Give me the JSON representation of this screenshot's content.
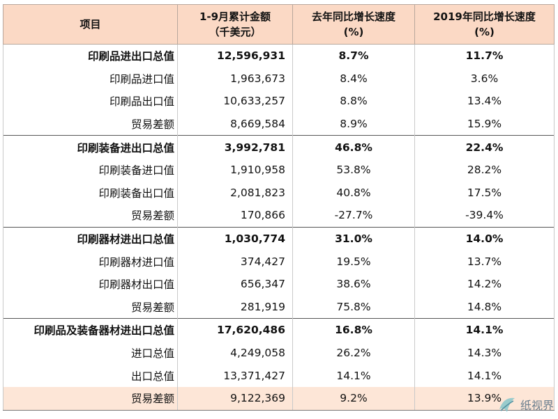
{
  "header": {
    "col1": "项目",
    "col2_line1": "1-9月累计金额",
    "col2_line2": "（千美元）",
    "col3_line1": "去年同比增长速度",
    "col3_line2": "(%)",
    "col4_line1": "2019年同比增长速度",
    "col4_line2": "(%)"
  },
  "rows": [
    {
      "name": "印刷品进出口总值",
      "value": "12,596,931",
      "yoy": "8.7%",
      "y2019": "11.7%"
    },
    {
      "name": "印刷品进口值",
      "value": "1,963,673",
      "yoy": "8.4%",
      "y2019": "3.6%"
    },
    {
      "name": "印刷品出口值",
      "value": "10,633,257",
      "yoy": "8.8%",
      "y2019": "13.4%"
    },
    {
      "name": "贸易差额",
      "value": "8,669,584",
      "yoy": "8.9%",
      "y2019": "15.9%"
    },
    {
      "name": "印刷装备进出口总值",
      "value": "3,992,781",
      "yoy": "46.8%",
      "y2019": "22.4%"
    },
    {
      "name": "印刷装备进口值",
      "value": "1,910,958",
      "yoy": "53.8%",
      "y2019": "28.2%"
    },
    {
      "name": "印刷装备出口值",
      "value": "2,081,823",
      "yoy": "40.8%",
      "y2019": "17.5%"
    },
    {
      "name": "贸易差额",
      "value": "170,866",
      "yoy": "-27.7%",
      "y2019": "-39.4%"
    },
    {
      "name": "印刷器材进出口总值",
      "value": "1,030,774",
      "yoy": "31.0%",
      "y2019": "14.0%"
    },
    {
      "name": "印刷器材进口值",
      "value": "374,427",
      "yoy": "19.5%",
      "y2019": "13.7%"
    },
    {
      "name": "印刷器材出口值",
      "value": "656,347",
      "yoy": "38.6%",
      "y2019": "14.2%"
    },
    {
      "name": "贸易差额",
      "value": "281,919",
      "yoy": "75.8%",
      "y2019": "14.8%"
    },
    {
      "name": "印刷品及装备器材进出口总值",
      "value": "17,620,486",
      "yoy": "16.8%",
      "y2019": "14.1%"
    },
    {
      "name": "进口总值",
      "value": "4,249,058",
      "yoy": "26.2%",
      "y2019": "14.3%"
    },
    {
      "name": "出口总值",
      "value": "13,371,427",
      "yoy": "14.1%",
      "y2019": "14.1%"
    },
    {
      "name": "贸易差额",
      "value": "9,122,369",
      "yoy": "9.2%",
      "y2019": "13.9%"
    }
  ],
  "watermark": {
    "text": "纸视界"
  }
}
